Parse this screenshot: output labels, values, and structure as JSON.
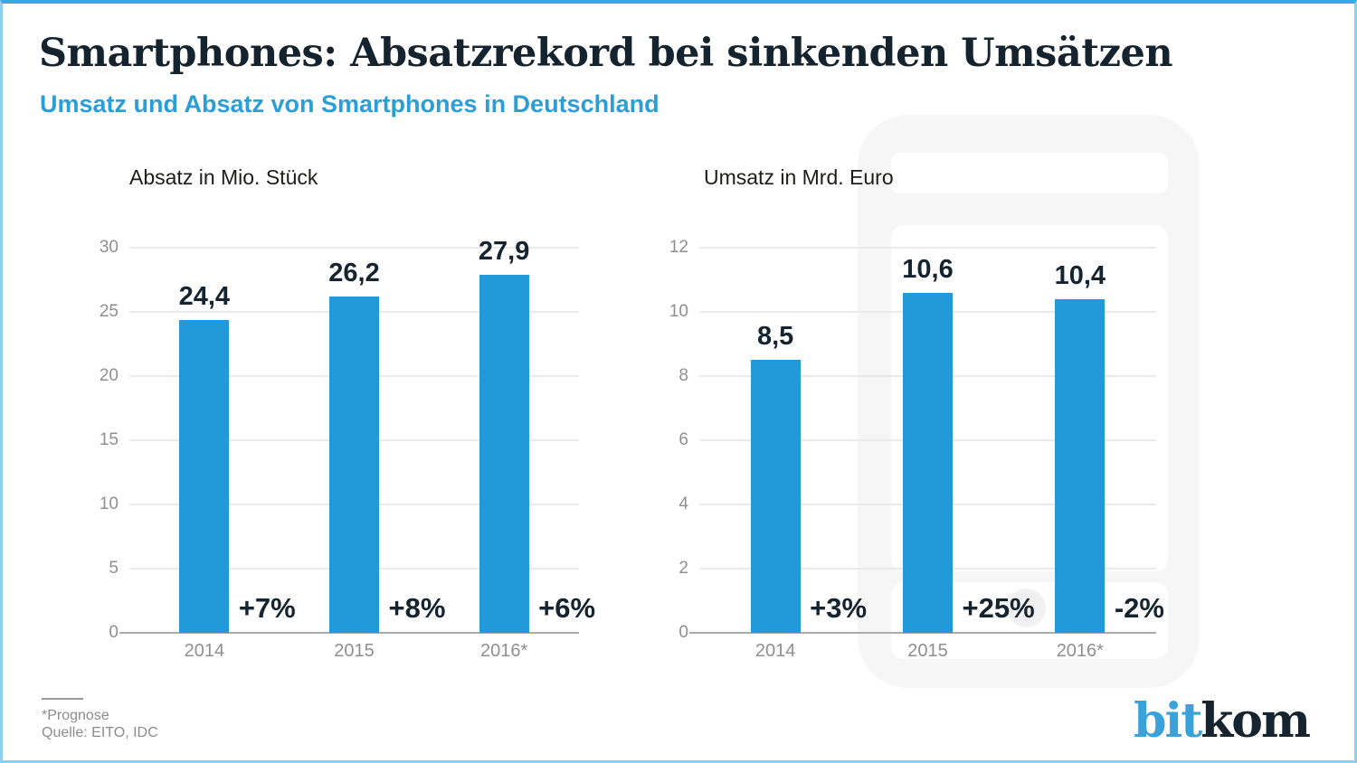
{
  "page": {
    "title": "Smartphones: Absatzrekord bei sinkenden Umsätzen",
    "subtitle": "Umsatz und Absatz von Smartphones in Deutschland"
  },
  "colors": {
    "bar": "#2299d8",
    "accent_blue": "#2b9ed8",
    "navy": "#15232e",
    "border_blue": "#38a8e0"
  },
  "chart_data": [
    {
      "type": "bar",
      "title": "Absatz in Mio. Stück",
      "categories": [
        "2014",
        "2015",
        "2016*"
      ],
      "values": [
        24.4,
        26.2,
        27.9
      ],
      "value_labels": [
        "24,4",
        "26,2",
        "27,9"
      ],
      "change_labels": [
        "+7%",
        "+8%",
        "+6%"
      ],
      "yticks": [
        0,
        5,
        10,
        15,
        20,
        25,
        30
      ],
      "ylim": [
        0,
        30
      ],
      "grid": true,
      "legend": "none",
      "bar_color": "#2299d8"
    },
    {
      "type": "bar",
      "title": "Umsatz in Mrd. Euro",
      "categories": [
        "2014",
        "2015",
        "2016*"
      ],
      "values": [
        8.5,
        10.6,
        10.4
      ],
      "value_labels": [
        "8,5",
        "10,6",
        "10,4"
      ],
      "change_labels": [
        "+3%",
        "+25%",
        "-2%"
      ],
      "yticks": [
        0,
        2,
        4,
        6,
        8,
        10,
        12
      ],
      "ylim": [
        0,
        12
      ],
      "grid": true,
      "legend": "none",
      "bar_color": "#2299d8"
    }
  ],
  "footer": {
    "note": "*Prognose",
    "source": "Quelle: EITO, IDC"
  },
  "logo": {
    "part1": "bit",
    "part2": "kom"
  }
}
